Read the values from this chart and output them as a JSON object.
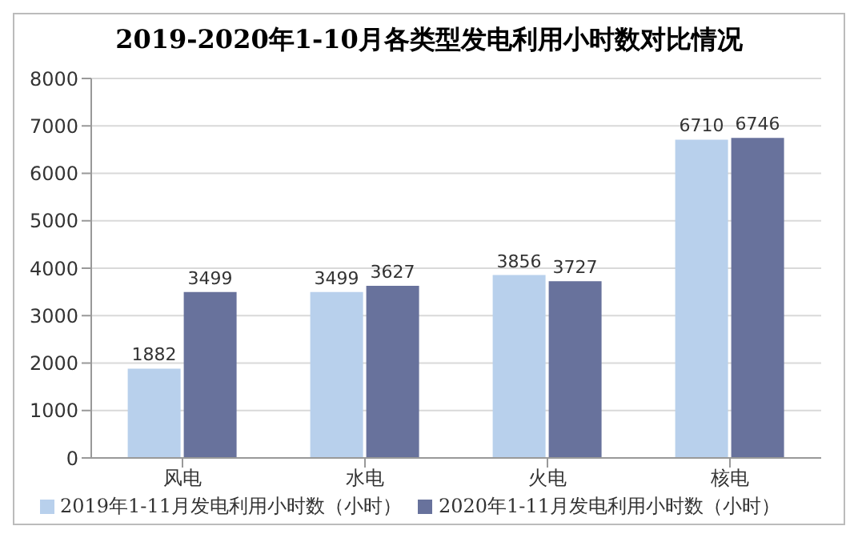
{
  "chart_data": {
    "type": "bar",
    "title": "2019-2020年1-10月各类型发电利用小时数对比情况",
    "categories": [
      "风电",
      "水电",
      "火电",
      "核电"
    ],
    "series": [
      {
        "name": "2019年1-11月发电利用小时数（小时）",
        "color": "#b8d0ec",
        "values": [
          1882,
          3499,
          3856,
          6710
        ]
      },
      {
        "name": "2020年1-11月发电利用小时数（小时）",
        "color": "#68729c",
        "values": [
          3499,
          3627,
          3727,
          6746
        ]
      }
    ],
    "ylim": [
      0,
      8000
    ],
    "yticks": [
      0,
      1000,
      2000,
      3000,
      4000,
      5000,
      6000,
      7000,
      8000
    ],
    "grid": "y",
    "legend": "bottom",
    "data_labels": true
  }
}
